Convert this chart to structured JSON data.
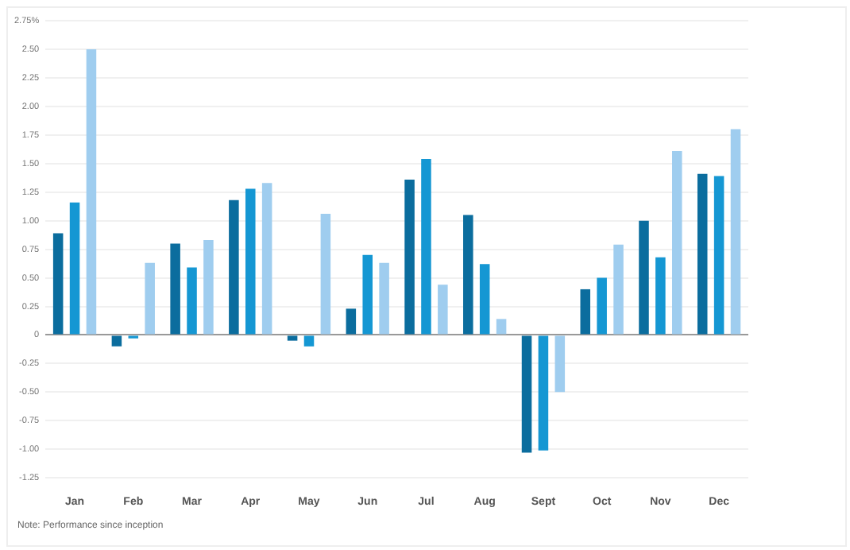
{
  "chart_data": {
    "type": "bar",
    "categories": [
      "Jan",
      "Feb",
      "Mar",
      "Apr",
      "May",
      "Jun",
      "Jul",
      "Aug",
      "Sept",
      "Oct",
      "Nov",
      "Dec"
    ],
    "series": [
      {
        "color": "#0b6d9e",
        "values": [
          0.89,
          -0.1,
          0.8,
          1.18,
          -0.05,
          0.23,
          1.36,
          1.05,
          -1.03,
          0.4,
          1.0,
          1.41
        ]
      },
      {
        "color": "#1597d3",
        "values": [
          1.16,
          -0.03,
          0.59,
          1.28,
          -0.1,
          0.7,
          1.54,
          0.62,
          -1.01,
          0.5,
          0.68,
          1.39
        ]
      },
      {
        "color": "#9fcdef",
        "values": [
          2.5,
          0.63,
          0.83,
          1.33,
          1.06,
          0.63,
          0.44,
          0.14,
          -0.5,
          0.79,
          1.61,
          1.8
        ]
      }
    ],
    "ylim": [
      -1.25,
      2.75
    ],
    "yticks": [
      -1.25,
      {
        "value": -1,
        "label": "-1.00"
      },
      -0.75,
      {
        "value": -0.5,
        "label": "-0.50"
      },
      -0.25,
      0,
      0.25,
      {
        "value": 0.5,
        "label": "0.50"
      },
      0.75,
      {
        "value": 1,
        "label": "1.00"
      },
      1.25,
      {
        "value": 1.5,
        "label": "1.50"
      },
      1.75,
      {
        "value": 2,
        "label": "2.00"
      },
      2.25,
      {
        "value": 2.5,
        "label": "2.50"
      },
      {
        "value": 2.75,
        "label": "2.75%"
      }
    ],
    "grid": "y",
    "legend": false,
    "annotations": [
      "Note: Performance since inception"
    ]
  }
}
